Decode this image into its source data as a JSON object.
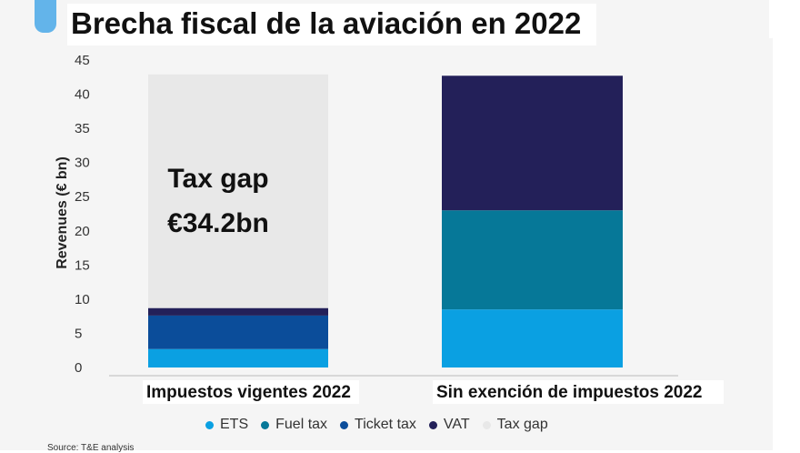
{
  "title": "Brecha fiscal de la aviación en 2022",
  "source": "Source: T&E analysis",
  "chart_data": {
    "type": "bar",
    "stacked": true,
    "ylabel": "Revenues (€ bn)",
    "ylim": [
      0,
      45
    ],
    "yticks": [
      0,
      5,
      10,
      15,
      20,
      25,
      30,
      35,
      40,
      45
    ],
    "categories": [
      "Impuestos vigentes 2022",
      "Sin exención de impuestos 2022"
    ],
    "series": [
      {
        "name": "ETS",
        "color": "#0aa0e2",
        "values": [
          2.7,
          8.5
        ]
      },
      {
        "name": "Fuel tax",
        "color": "#067898",
        "values": [
          0,
          14.5
        ]
      },
      {
        "name": "Ticket tax",
        "color": "#0b4d9a",
        "values": [
          4.9,
          0
        ]
      },
      {
        "name": "VAT",
        "color": "#232059",
        "values": [
          1.1,
          19.7
        ]
      },
      {
        "name": "Tax gap",
        "color": "#e8e8e8",
        "values": [
          34.2,
          0
        ]
      }
    ],
    "annotations": [
      {
        "category": "Impuestos vigentes 2022",
        "line1": "Tax gap",
        "line2": "€34.2bn"
      }
    ],
    "legend_position": "bottom",
    "grid": false
  }
}
